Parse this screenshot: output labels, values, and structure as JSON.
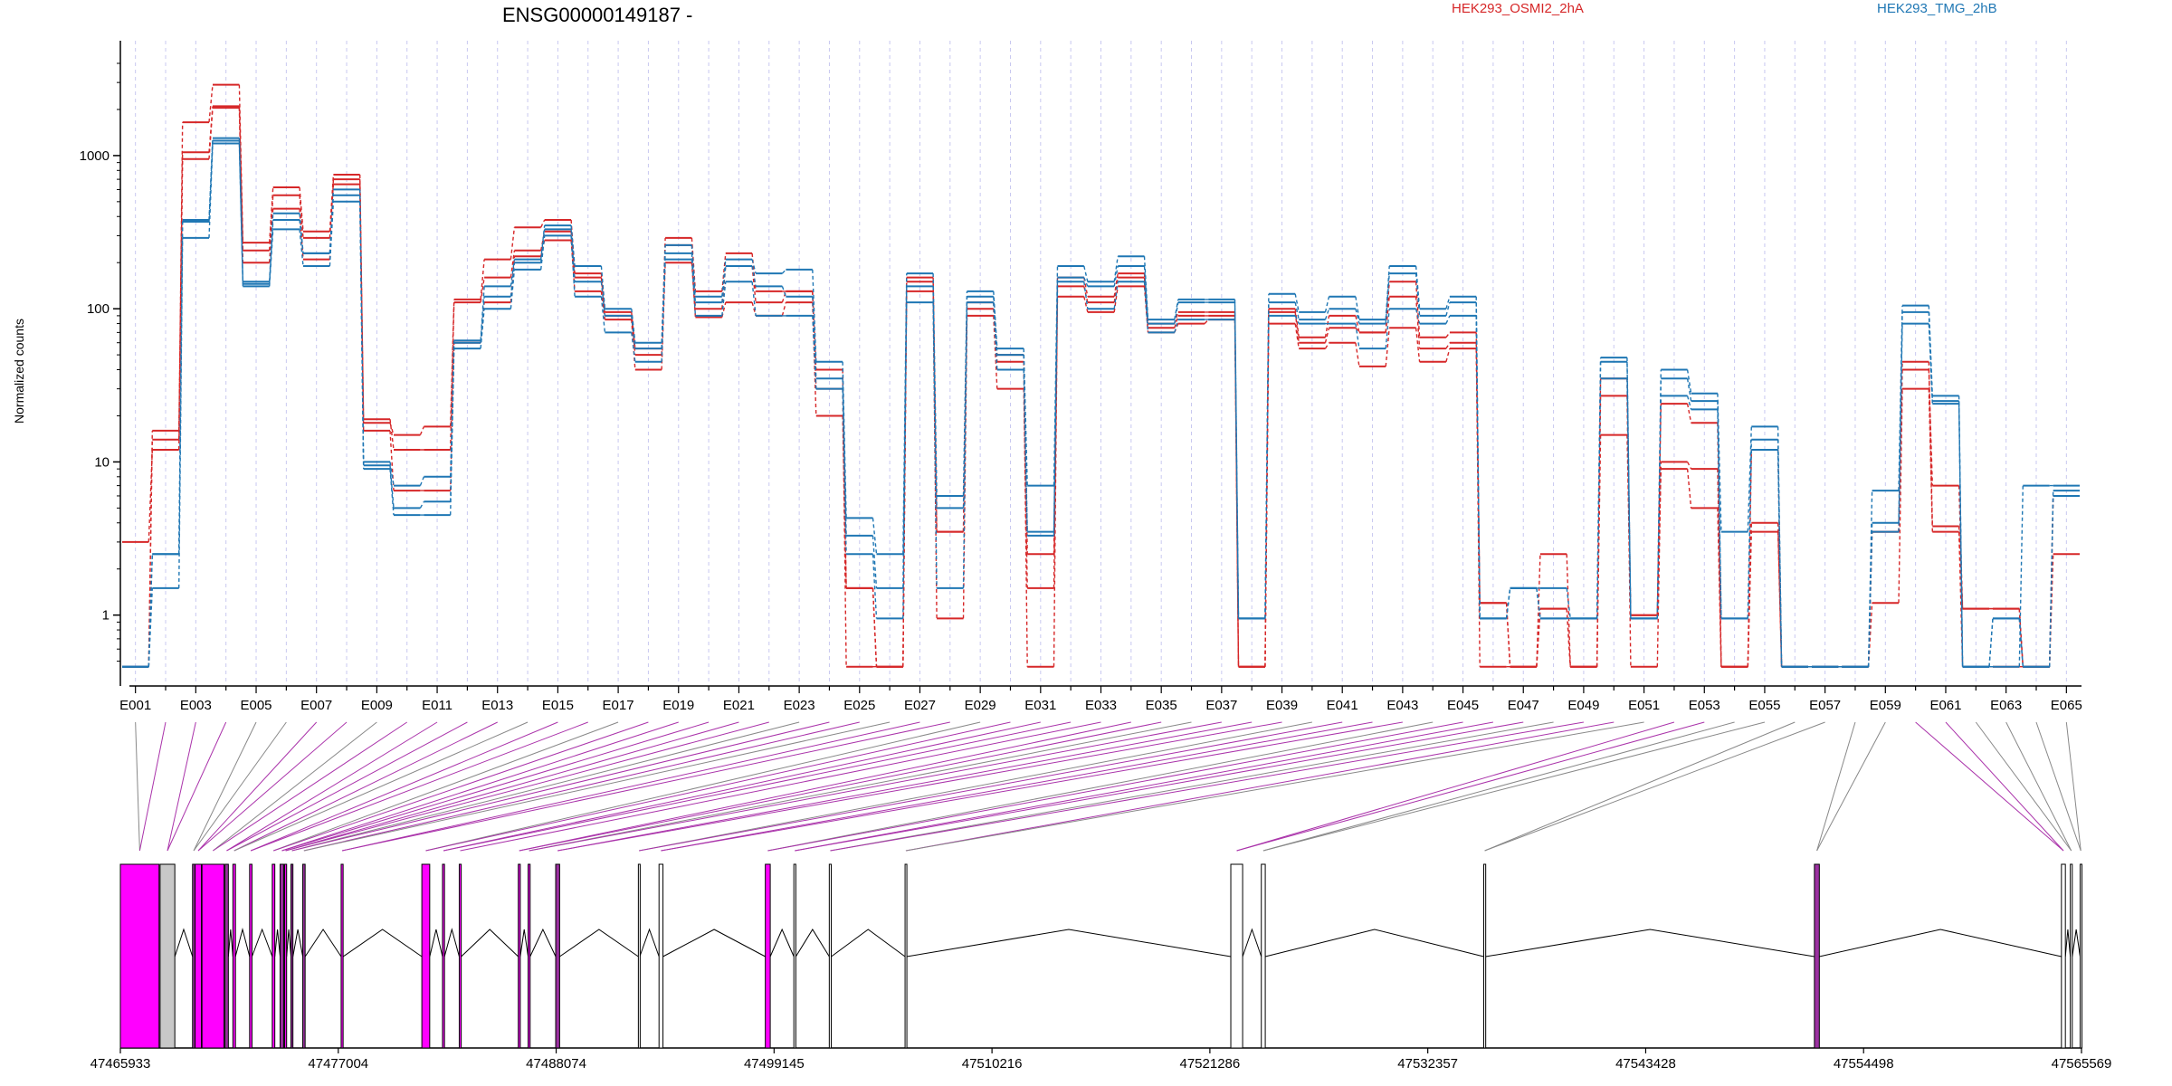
{
  "chart_data": {
    "type": "line",
    "title": "ENSG00000149187 -",
    "ylabel": "Normalized counts",
    "yscale": "log",
    "ylim": [
      0.44,
      4000
    ],
    "yticks": [
      1,
      10,
      100,
      1000
    ],
    "ytick_labels": [
      "1",
      "10",
      "100",
      "1000"
    ],
    "xtick_labels": [
      "E001",
      "E003",
      "E005",
      "E007",
      "E009",
      "E011",
      "E013",
      "E015",
      "E017",
      "E019",
      "E021",
      "E023",
      "E025",
      "E027",
      "E029",
      "E031",
      "E033",
      "E035",
      "E037",
      "E039",
      "E041",
      "E043",
      "E045",
      "E047",
      "E049",
      "E051",
      "E053",
      "E055",
      "E057",
      "E059",
      "E061",
      "E063",
      "E065"
    ],
    "legend": [
      "HEK293_OSMI2_2hA",
      "HEK293_TMG_2hB"
    ],
    "series_colors": [
      "#d62728",
      "#1f77b4"
    ],
    "genomic_coordinates": [
      "47465933",
      "47477004",
      "47488074",
      "47499145",
      "47510216",
      "47521286",
      "47532357",
      "47543428",
      "47554498",
      "47565569"
    ],
    "bins": [
      "E001",
      "E002",
      "E003",
      "E004",
      "E005",
      "E006",
      "E007",
      "E008",
      "E009",
      "E010",
      "E011",
      "E012",
      "E013",
      "E014",
      "E015",
      "E016",
      "E017",
      "E018",
      "E019",
      "E020",
      "E021",
      "E022",
      "E023",
      "E024",
      "E025",
      "E026",
      "E027",
      "E028",
      "E029",
      "E030",
      "E031",
      "E032",
      "E033",
      "E034",
      "E035",
      "E036",
      "E037",
      "E038",
      "E039",
      "E040",
      "E041",
      "E042",
      "E043",
      "E044",
      "E045",
      "E046",
      "E047",
      "E048",
      "E049",
      "E050",
      "E051",
      "E052",
      "E053",
      "E054",
      "E055",
      "E056",
      "E057",
      "E058",
      "E059",
      "E060",
      "E061",
      "E062",
      "E063",
      "E064",
      "E065"
    ],
    "series": [
      {
        "group": "HEK293_OSMI2_2hA",
        "values": [
          3,
          12,
          950,
          2050,
          200,
          450,
          210,
          700,
          16,
          6.5,
          6.5,
          60,
          110,
          220,
          280,
          130,
          85,
          40,
          200,
          88,
          110,
          90,
          110,
          20,
          1.5,
          0.46,
          130,
          0.95,
          90,
          30,
          1.5,
          120,
          95,
          140,
          70,
          80,
          85,
          0.46,
          80,
          55,
          60,
          42,
          75,
          45,
          55,
          1.2,
          0.46,
          1.1,
          0.46,
          15,
          1.0,
          9,
          5,
          0.46,
          3.5,
          0.46,
          0.46,
          0.46,
          1.2,
          30,
          3.5,
          0.46,
          0.46,
          0.46,
          2.5
        ]
      },
      {
        "group": "HEK293_OSMI2_2hA",
        "values": [
          0.46,
          16,
          1050,
          2100,
          240,
          550,
          290,
          650,
          19,
          12,
          12,
          110,
          160,
          240,
          320,
          160,
          90,
          50,
          260,
          100,
          190,
          110,
          130,
          30,
          0.46,
          0.46,
          150,
          3.5,
          100,
          45,
          0.46,
          140,
          110,
          160,
          75,
          90,
          90,
          0.46,
          95,
          60,
          75,
          70,
          120,
          55,
          60,
          0.46,
          0.46,
          1.1,
          0.46,
          27,
          0.46,
          10,
          9,
          0.46,
          4,
          0.46,
          0.46,
          0.46,
          3.5,
          40,
          7,
          1.1,
          1.1,
          0.46,
          6
        ]
      },
      {
        "group": "HEK293_OSMI2_2hA",
        "values": [
          0.46,
          14,
          1650,
          2900,
          270,
          620,
          320,
          750,
          18,
          15,
          17,
          115,
          210,
          340,
          380,
          170,
          95,
          55,
          290,
          130,
          230,
          130,
          130,
          40,
          1.5,
          0.46,
          160,
          3.5,
          110,
          50,
          2.5,
          160,
          120,
          170,
          80,
          95,
          95,
          0.46,
          100,
          65,
          90,
          70,
          150,
          65,
          70,
          1.2,
          0.46,
          2.5,
          0.46,
          35,
          1.0,
          24,
          18,
          0.46,
          12,
          0.46,
          0.46,
          0.46,
          3.5,
          45,
          3.8,
          1.1,
          1.1,
          0.46,
          6
        ]
      },
      {
        "group": "HEK293_TMG_2hB",
        "values": [
          0.46,
          1.5,
          290,
          1200,
          140,
          330,
          190,
          500,
          9,
          4.5,
          4.5,
          55,
          100,
          180,
          300,
          120,
          70,
          45,
          210,
          90,
          150,
          90,
          90,
          30,
          2.5,
          0.95,
          110,
          1.5,
          110,
          40,
          3.3,
          150,
          100,
          150,
          70,
          85,
          85,
          0.95,
          90,
          80,
          80,
          55,
          100,
          80,
          90,
          0.95,
          1.5,
          0.95,
          0.95,
          35,
          0.95,
          27,
          22,
          0.95,
          12,
          0.46,
          0.46,
          0.46,
          3.5,
          80,
          24,
          0.46,
          0.95,
          0.46,
          6
        ]
      },
      {
        "group": "HEK293_TMG_2hB",
        "values": [
          0.46,
          2.5,
          370,
          1250,
          145,
          380,
          230,
          550,
          9.5,
          5,
          5.5,
          60,
          120,
          200,
          330,
          150,
          90,
          55,
          230,
          110,
          190,
          140,
          120,
          35,
          3.3,
          1.5,
          140,
          5,
          120,
          50,
          3.5,
          160,
          140,
          190,
          80,
          110,
          110,
          0.95,
          110,
          85,
          100,
          80,
          170,
          90,
          110,
          0.95,
          1.5,
          0.95,
          0.95,
          45,
          0.95,
          35,
          25,
          0.95,
          14,
          0.46,
          0.46,
          0.46,
          4,
          95,
          25,
          0.46,
          0.95,
          0.46,
          6.5
        ]
      },
      {
        "group": "HEK293_TMG_2hB",
        "values": [
          0.46,
          2.5,
          380,
          1300,
          150,
          420,
          230,
          600,
          10,
          7,
          8,
          62,
          140,
          210,
          350,
          190,
          100,
          60,
          260,
          120,
          210,
          170,
          180,
          45,
          4.3,
          2.5,
          170,
          6,
          130,
          55,
          7,
          190,
          150,
          220,
          85,
          115,
          115,
          0.95,
          125,
          95,
          120,
          85,
          190,
          100,
          120,
          0.95,
          1.5,
          1.5,
          0.95,
          48,
          0.95,
          40,
          28,
          3.5,
          17,
          0.46,
          0.46,
          0.46,
          6.5,
          105,
          27,
          0.46,
          0.46,
          7,
          7
        ]
      }
    ],
    "exon_model": {
      "exon_spans": [
        [
          47465933,
          47467900
        ],
        [
          47467950,
          47468700
        ],
        [
          47469600,
          47469720
        ],
        [
          47469730,
          47470050
        ],
        [
          47470080,
          47471200
        ],
        [
          47471250,
          47471420
        ],
        [
          47471650,
          47471780
        ],
        [
          47472500,
          47472620
        ],
        [
          47473650,
          47473780
        ],
        [
          47474050,
          47474230
        ],
        [
          47474280,
          47474380
        ],
        [
          47474600,
          47474700
        ],
        [
          47475200,
          47475320
        ],
        [
          47477150,
          47477250
        ],
        [
          47481250,
          47481650
        ],
        [
          47482300,
          47482400
        ],
        [
          47483150,
          47483250
        ],
        [
          47486150,
          47486250
        ],
        [
          47486650,
          47486750
        ],
        [
          47488050,
          47488250
        ],
        [
          47492250,
          47492320
        ],
        [
          47493300,
          47493500
        ],
        [
          47498700,
          47498950
        ],
        [
          47500150,
          47500250
        ],
        [
          47501950,
          47502050
        ],
        [
          47505800,
          47505880
        ],
        [
          47522350,
          47522950
        ],
        [
          47523900,
          47524100
        ],
        [
          47535200,
          47535300
        ],
        [
          47552000,
          47552250
        ],
        [
          47564550,
          47564750
        ],
        [
          47565000,
          47565100
        ],
        [
          47565500,
          47565569
        ]
      ],
      "exon_colors": [
        "#ff00ff",
        "#c8c8c8",
        "#9b30a0",
        "#ff00ff",
        "#ff00ff",
        "#9b30a0",
        "#ff00ff",
        "#ff00ff",
        "#ff00ff",
        "#9b30a0",
        "#ff00ff",
        "#9b30a0",
        "#9b30a0",
        "#ff00ff",
        "#ff00ff",
        "#ff00ff",
        "#ff00ff",
        "#ff00ff",
        "#ff00ff",
        "#9b30a0",
        "#ffffff",
        "#ffffff",
        "#ff00ff",
        "#ffffff",
        "#ffffff",
        "#ffffff",
        "#ffffff",
        "#ffffff",
        "#ffffff",
        "#9b30a0",
        "#ffffff",
        "#ffffff",
        "#ffffff"
      ],
      "bin_connector_colors": [
        "#888888",
        "#aa33aa",
        "#aa33aa",
        "#aa33aa",
        "#888888",
        "#888888",
        "#aa33aa",
        "#aa33aa",
        "#888888",
        "#aa33aa",
        "#aa33aa",
        "#aa33aa",
        "#aa33aa",
        "#888888",
        "#aa33aa",
        "#aa33aa",
        "#888888",
        "#aa33aa",
        "#aa33aa",
        "#aa33aa",
        "#aa33aa",
        "#aa33aa",
        "#888888",
        "#aa33aa",
        "#aa33aa",
        "#888888",
        "#aa33aa",
        "#aa33aa",
        "#888888",
        "#aa33aa",
        "#aa33aa",
        "#aa33aa",
        "#aa33aa",
        "#aa33aa",
        "#aa33aa",
        "#888888",
        "#aa33aa",
        "#aa33aa",
        "#aa33aa",
        "#888888",
        "#aa33aa",
        "#aa33aa",
        "#aa33aa",
        "#888888",
        "#aa33aa",
        "#aa33aa",
        "#aa33aa",
        "#888888",
        "#aa33aa",
        "#aa33aa",
        "#888888",
        "#aa33aa",
        "#aa33aa",
        "#888888",
        "#888888",
        "#888888",
        "#888888",
        "#888888",
        "#888888",
        "#aa33aa",
        "#aa33aa",
        "#888888",
        "#888888",
        "#888888",
        "#888888"
      ]
    }
  }
}
